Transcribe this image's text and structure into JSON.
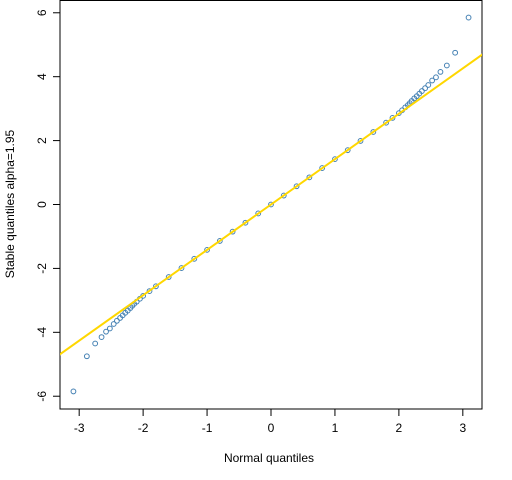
{
  "chart_data": {
    "type": "scatter",
    "title": "",
    "xlabel": "Normal quantiles",
    "ylabel": "Stable quantiles alpha=1.95",
    "xlim": [
      -3.3,
      3.3
    ],
    "ylim": [
      -6.4,
      6.4
    ],
    "x_ticks": [
      -3,
      -2,
      -1,
      0,
      1,
      2,
      3
    ],
    "y_ticks": [
      -6,
      -4,
      -2,
      0,
      2,
      4,
      6
    ],
    "grid": false,
    "reference_line": {
      "slope": 1.42,
      "intercept": 0,
      "color": "#FFD700"
    },
    "series": [
      {
        "marker": "open-circle",
        "color": "#4682B4",
        "points": [
          [
            -3.09,
            -5.85
          ],
          [
            -2.88,
            -4.75
          ],
          [
            -2.75,
            -4.35
          ],
          [
            -2.65,
            -4.15
          ],
          [
            -2.58,
            -3.98
          ],
          [
            -2.52,
            -3.88
          ],
          [
            -2.46,
            -3.74
          ],
          [
            -2.41,
            -3.64
          ],
          [
            -2.36,
            -3.55
          ],
          [
            -2.32,
            -3.47
          ],
          [
            -2.28,
            -3.39
          ],
          [
            -2.24,
            -3.32
          ],
          [
            -2.2,
            -3.24
          ],
          [
            -2.17,
            -3.17
          ],
          [
            -2.14,
            -3.11
          ],
          [
            -2.1,
            -3.04
          ],
          [
            -2.05,
            -2.95
          ],
          [
            -2.0,
            -2.86
          ],
          [
            -1.9,
            -2.71
          ],
          [
            -1.8,
            -2.56
          ],
          [
            -1.6,
            -2.27
          ],
          [
            -1.4,
            -1.99
          ],
          [
            -1.2,
            -1.7
          ],
          [
            -1.0,
            -1.42
          ],
          [
            -0.8,
            -1.14
          ],
          [
            -0.6,
            -0.85
          ],
          [
            -0.4,
            -0.57
          ],
          [
            -0.2,
            -0.28
          ],
          [
            0.0,
            0.0
          ],
          [
            0.2,
            0.28
          ],
          [
            0.4,
            0.57
          ],
          [
            0.6,
            0.85
          ],
          [
            0.8,
            1.14
          ],
          [
            1.0,
            1.42
          ],
          [
            1.2,
            1.7
          ],
          [
            1.4,
            1.99
          ],
          [
            1.6,
            2.27
          ],
          [
            1.8,
            2.56
          ],
          [
            1.9,
            2.71
          ],
          [
            2.0,
            2.86
          ],
          [
            2.05,
            2.95
          ],
          [
            2.1,
            3.04
          ],
          [
            2.14,
            3.11
          ],
          [
            2.17,
            3.17
          ],
          [
            2.2,
            3.24
          ],
          [
            2.24,
            3.32
          ],
          [
            2.28,
            3.39
          ],
          [
            2.32,
            3.47
          ],
          [
            2.36,
            3.55
          ],
          [
            2.41,
            3.64
          ],
          [
            2.46,
            3.74
          ],
          [
            2.52,
            3.88
          ],
          [
            2.58,
            3.98
          ],
          [
            2.65,
            4.15
          ],
          [
            2.75,
            4.35
          ],
          [
            2.88,
            4.75
          ],
          [
            3.09,
            5.85
          ]
        ]
      }
    ]
  }
}
